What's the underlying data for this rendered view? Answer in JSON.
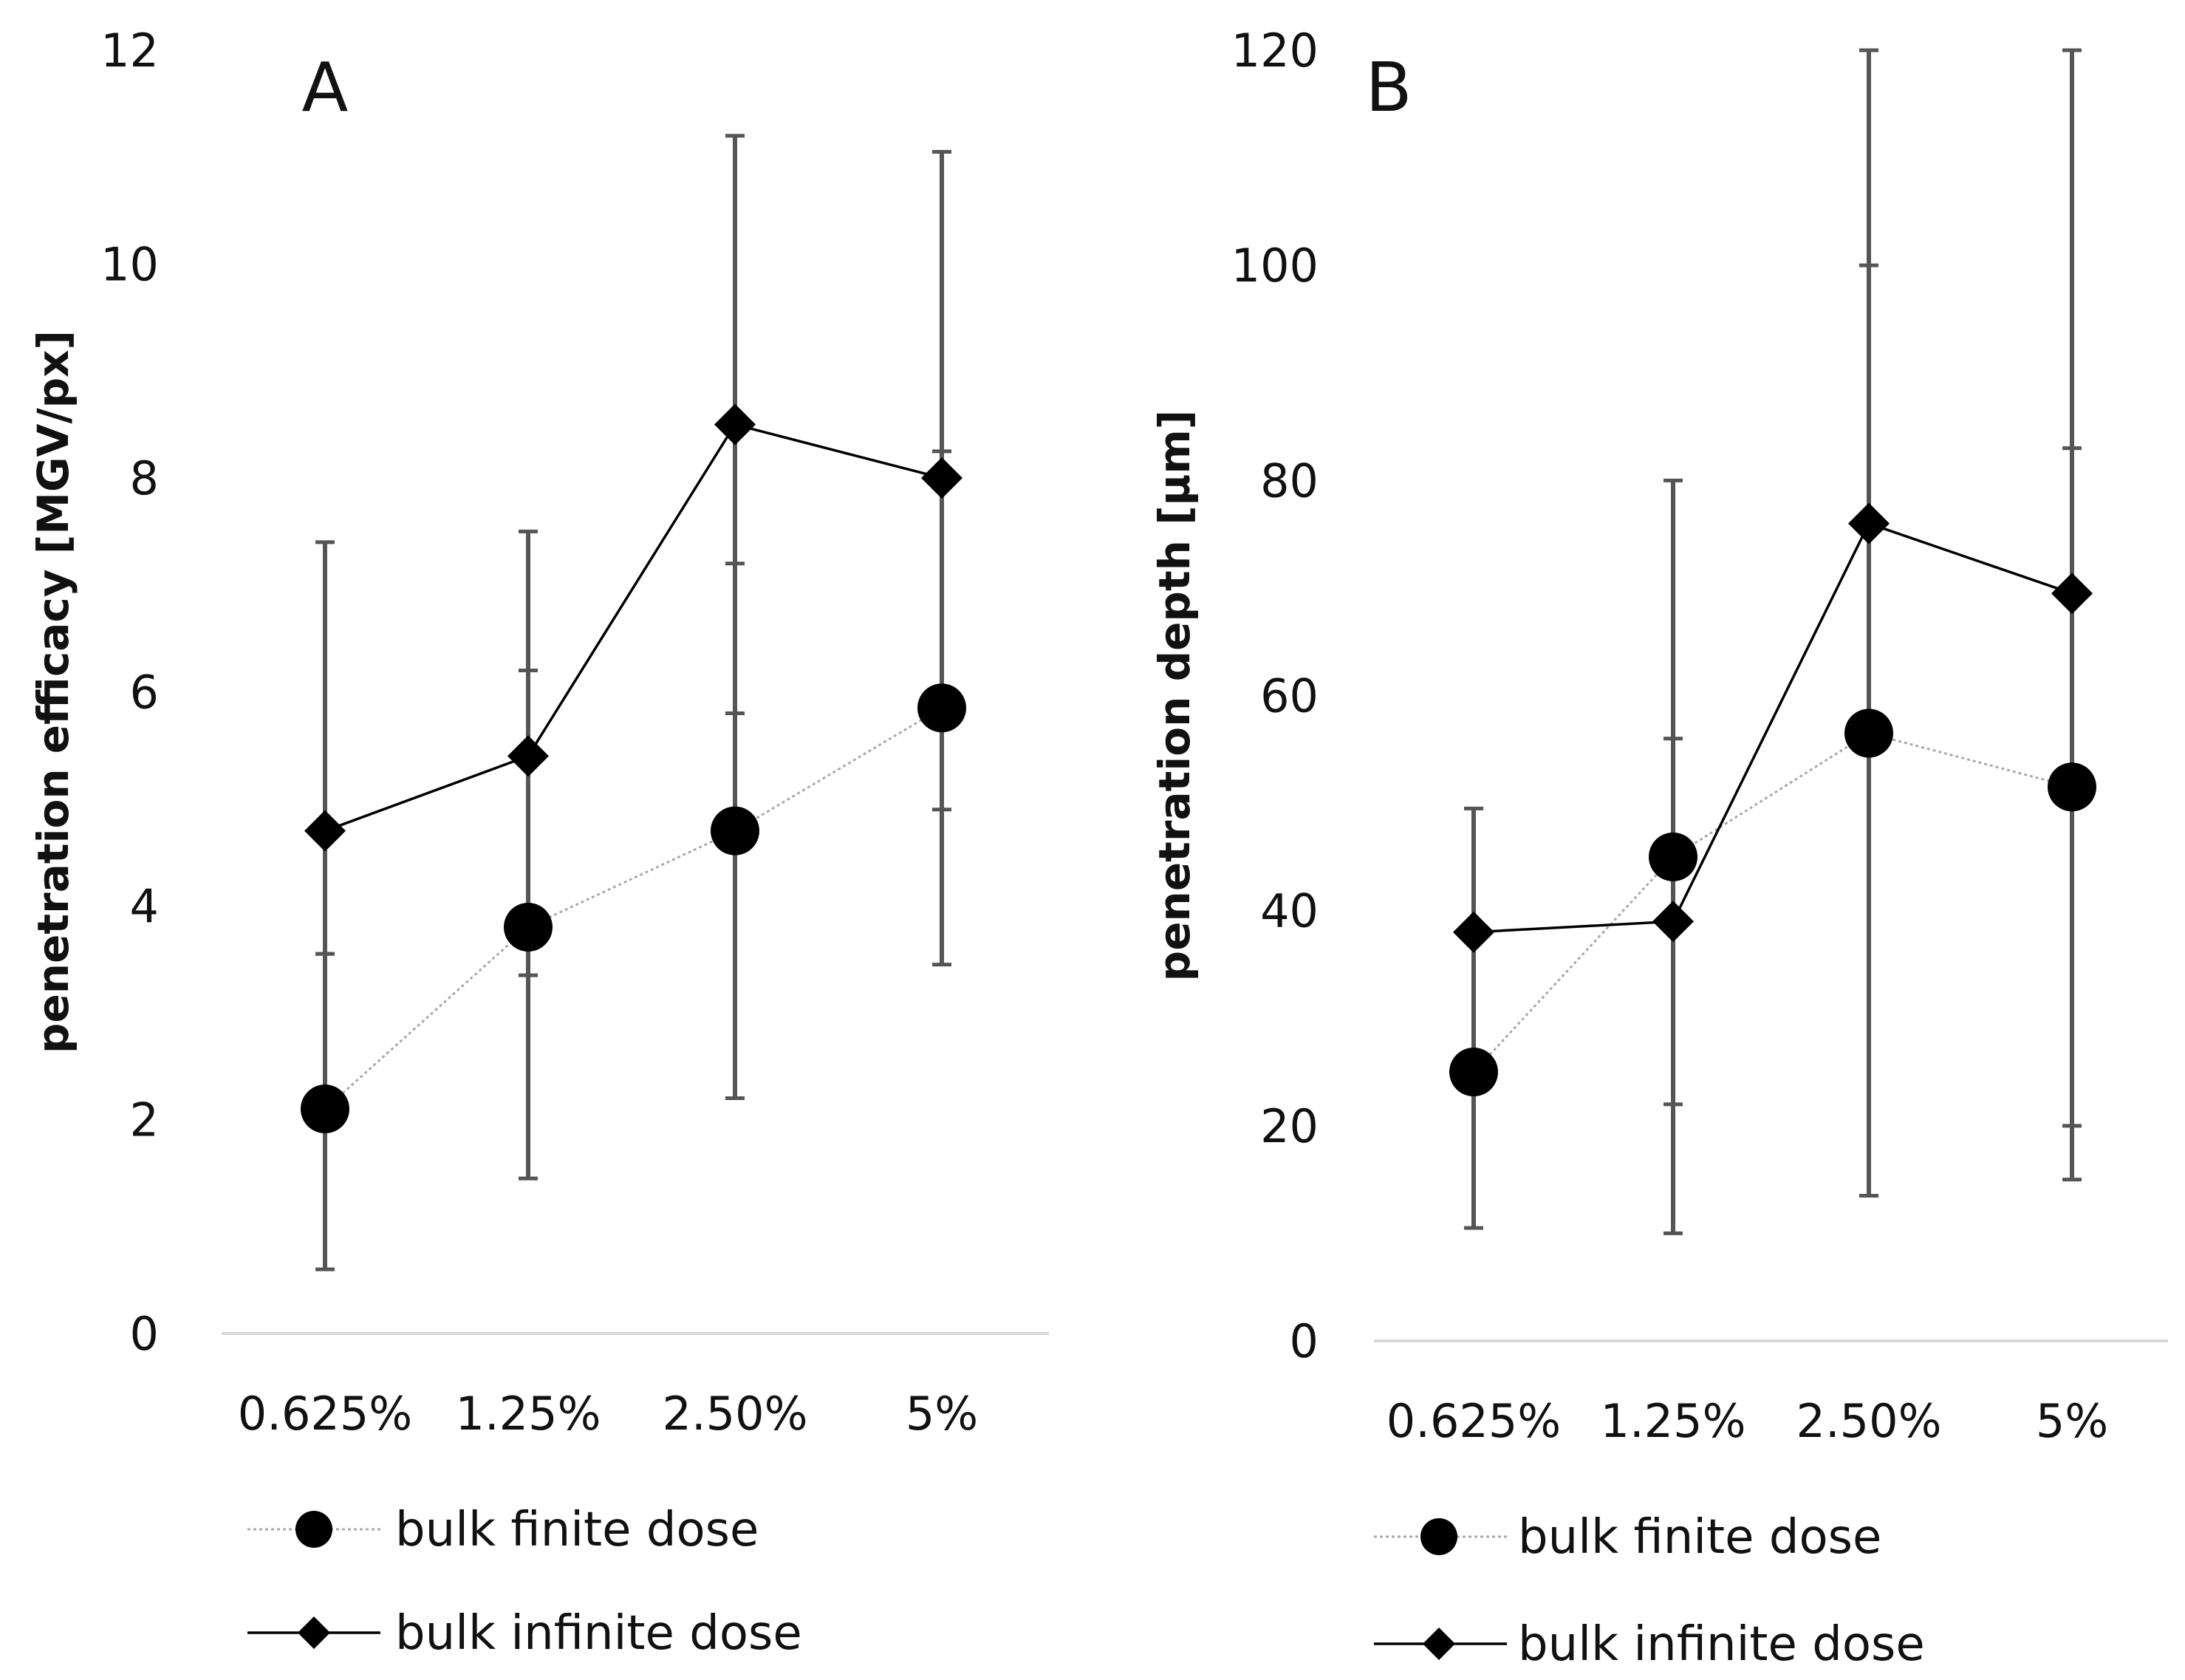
{
  "figure": {
    "styles": {
      "marker_color": "#000000",
      "errorbar_color": "#555555",
      "baseline_color": "#d9d9d9",
      "finite_line_color": "#aaaaaa",
      "infinite_line_color": "#000000"
    }
  },
  "chart_data": [
    {
      "type": "line",
      "panel_label": "A",
      "title": "",
      "xlabel": "",
      "ylabel": "penetration efficacy [MGV/px]",
      "categories": [
        "0.625%",
        "1.25%",
        "2.50%",
        "5%"
      ],
      "ylim": [
        0,
        12
      ],
      "yticks": [
        0,
        2,
        4,
        6,
        8,
        10,
        12
      ],
      "grid": false,
      "legend_position": "bottom",
      "series": [
        {
          "name": "bulk finite dose",
          "marker": "circle",
          "line_style": "dotted",
          "values": [
            2.1,
            3.8,
            4.7,
            5.85
          ],
          "error_low": [
            0.6,
            1.45,
            2.2,
            3.45
          ],
          "error_high": [
            3.55,
            6.2,
            7.2,
            8.25
          ]
        },
        {
          "name": "bulk infinite dose",
          "marker": "diamond",
          "line_style": "solid",
          "values": [
            4.7,
            5.4,
            8.5,
            8.0
          ],
          "error_low": [
            3.55,
            3.35,
            5.8,
            4.9
          ],
          "error_high": [
            7.4,
            7.5,
            11.2,
            11.05
          ]
        }
      ]
    },
    {
      "type": "line",
      "panel_label": "B",
      "title": "",
      "xlabel": "",
      "ylabel": "penetration depth [µm]",
      "categories": [
        "0.625%",
        "1.25%",
        "2.50%",
        "5%"
      ],
      "ylim": [
        0,
        120
      ],
      "yticks": [
        0,
        20,
        40,
        60,
        80,
        100,
        120
      ],
      "grid": false,
      "legend_position": "bottom",
      "series": [
        {
          "name": "bulk finite dose",
          "marker": "circle",
          "line_style": "dotted",
          "values": [
            25,
            45,
            56.5,
            51.5
          ],
          "error_low": [
            10.5,
            10,
            13.5,
            15
          ],
          "error_high": [
            38,
            56,
            100,
            83
          ]
        },
        {
          "name": "bulk infinite dose",
          "marker": "diamond",
          "line_style": "solid",
          "values": [
            38,
            39,
            76,
            69.5
          ],
          "error_low": [
            25,
            22,
            13.5,
            20
          ],
          "error_high": [
            49.5,
            80,
            120,
            120
          ]
        }
      ]
    }
  ]
}
